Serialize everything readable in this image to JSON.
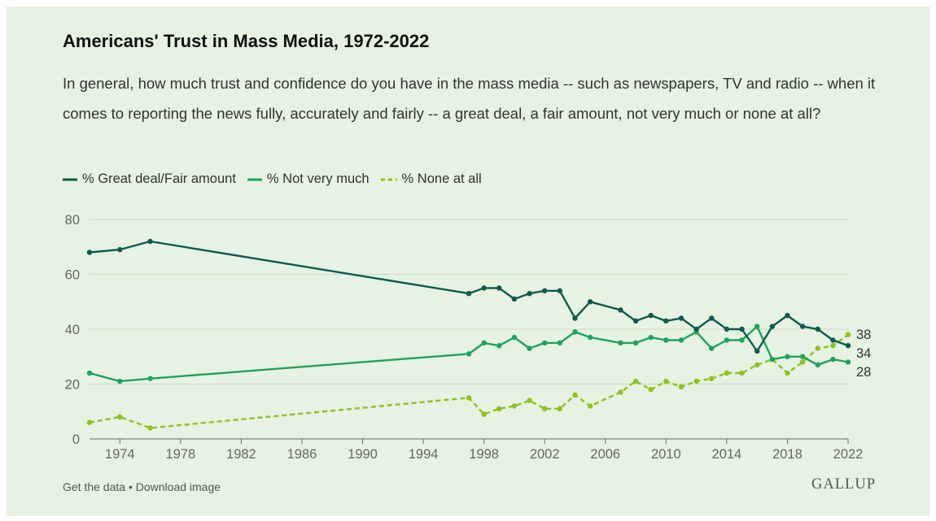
{
  "chart_data": {
    "type": "line",
    "title": "Americans' Trust in Mass Media, 1972-2022",
    "subtitle": "In general, how much trust and confidence do you have in the mass media -- such as newspapers, TV and radio -- when it comes to reporting the news fully, accurately and fairly -- a great deal, a fair amount, not very much or none at all?",
    "ylim": [
      0,
      80
    ],
    "yticks": [
      0,
      20,
      40,
      60,
      80
    ],
    "xlim": [
      1972,
      2022
    ],
    "xticks": [
      1974,
      1978,
      1982,
      1986,
      1990,
      1994,
      1998,
      2002,
      2006,
      2010,
      2014,
      2018,
      2022
    ],
    "x": [
      1972,
      1974,
      1976,
      1997,
      1998,
      1999,
      2000,
      2001,
      2002,
      2003,
      2004,
      2005,
      2007,
      2008,
      2009,
      2010,
      2011,
      2012,
      2013,
      2014,
      2015,
      2016,
      2017,
      2018,
      2019,
      2020,
      2021,
      2022
    ],
    "grid": true,
    "legend_position": "top-left",
    "series": [
      {
        "name": "% Great deal/Fair amount",
        "color": "#0f5a4c",
        "dashed": false,
        "values": [
          68,
          69,
          72,
          53,
          55,
          55,
          51,
          53,
          54,
          54,
          44,
          50,
          47,
          43,
          45,
          43,
          44,
          40,
          44,
          40,
          40,
          32,
          41,
          45,
          41,
          40,
          36,
          34
        ],
        "end_label": "34"
      },
      {
        "name": "% Not very much",
        "color": "#1fa35c",
        "dashed": false,
        "values": [
          24,
          21,
          22,
          31,
          35,
          34,
          37,
          33,
          35,
          35,
          39,
          37,
          35,
          35,
          37,
          36,
          36,
          39,
          33,
          36,
          36,
          41,
          29,
          30,
          30,
          27,
          29,
          28
        ],
        "end_label": "28"
      },
      {
        "name": "% None at all",
        "color": "#8dc21f",
        "dashed": true,
        "values": [
          6,
          8,
          4,
          15,
          9,
          11,
          12,
          14,
          11,
          11,
          16,
          12,
          17,
          21,
          18,
          21,
          19,
          21,
          22,
          24,
          24,
          27,
          29,
          24,
          28,
          33,
          34,
          38
        ],
        "end_label": "38"
      }
    ]
  },
  "footer": {
    "get_data": "Get the data",
    "separator": " • ",
    "download": "Download image"
  },
  "logo": "GALLUP"
}
